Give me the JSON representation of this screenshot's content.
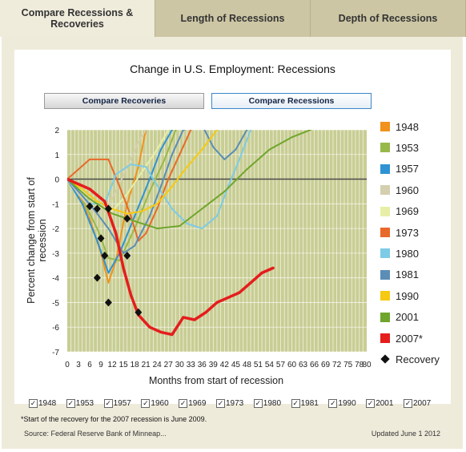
{
  "tabs": [
    "Compare Recessions & Recoveries",
    "Length of Recessions",
    "Depth of Recessions"
  ],
  "title": "Change in U.S. Employment: Recessions",
  "buttons": {
    "recoveries": "Compare Recoveries",
    "recessions": "Compare Recessions"
  },
  "legend": [
    {
      "label": "1948",
      "color": "#f0921c"
    },
    {
      "label": "1953",
      "color": "#98b94a"
    },
    {
      "label": "1957",
      "color": "#2f93d3"
    },
    {
      "label": "1960",
      "color": "#d4cfae"
    },
    {
      "label": "1969",
      "color": "#e7efa7"
    },
    {
      "label": "1973",
      "color": "#e8692a"
    },
    {
      "label": "1980",
      "color": "#7dcbe6"
    },
    {
      "label": "1981",
      "color": "#5b8db7"
    },
    {
      "label": "1990",
      "color": "#f6c912"
    },
    {
      "label": "2001",
      "color": "#6fa52c"
    },
    {
      "label": "2007*",
      "color": "#e51d1d"
    },
    {
      "label": "Recovery",
      "color": "#111111"
    }
  ],
  "checkboxes": [
    "1948",
    "1953",
    "1957",
    "1960",
    "1969",
    "1973",
    "1980",
    "1981",
    "1990",
    "2001",
    "2007"
  ],
  "checkbox_mark": "✓",
  "footnote": "*Start of the recovery for the 2007 recession is June 2009.",
  "source": "Source: Federal Reserve Bank of Minneap...",
  "updated": "Updated June 1 2012",
  "chart_data": {
    "type": "line",
    "title": "Change in U.S. Employment: Recessions",
    "xlabel": "Months from start of recession",
    "ylabel": "Percent change from start of recession",
    "xlim": [
      0,
      80
    ],
    "ylim": [
      -7,
      2
    ],
    "xticks": [
      0,
      3,
      6,
      9,
      12,
      15,
      18,
      21,
      24,
      27,
      30,
      33,
      36,
      39,
      42,
      45,
      48,
      51,
      54,
      57,
      60,
      63,
      66,
      69,
      72,
      75,
      78,
      80
    ],
    "yticks": [
      2,
      1,
      0,
      -1,
      -2,
      -3,
      -4,
      -5,
      -6,
      -7
    ],
    "grid": true,
    "plot_background": "#c8cd93",
    "series": [
      {
        "name": "1948",
        "color": "#f0921c",
        "width": 2,
        "points": [
          [
            0,
            0
          ],
          [
            3,
            -0.6
          ],
          [
            6,
            -1.6
          ],
          [
            9,
            -3
          ],
          [
            11,
            -4.2
          ],
          [
            13,
            -3.3
          ],
          [
            16,
            -1
          ],
          [
            19,
            0.5
          ],
          [
            21,
            2
          ]
        ]
      },
      {
        "name": "1953",
        "color": "#98b94a",
        "width": 2,
        "points": [
          [
            0,
            0
          ],
          [
            4,
            -0.8
          ],
          [
            8,
            -2
          ],
          [
            11,
            -3.2
          ],
          [
            14,
            -3.3
          ],
          [
            18,
            -2
          ],
          [
            22,
            -0.5
          ],
          [
            26,
            0.8
          ],
          [
            29,
            2
          ]
        ]
      },
      {
        "name": "1957",
        "color": "#2f93d3",
        "width": 2,
        "points": [
          [
            0,
            0
          ],
          [
            4,
            -1
          ],
          [
            8,
            -2.5
          ],
          [
            11,
            -3.8
          ],
          [
            14,
            -3
          ],
          [
            18,
            -1.5
          ],
          [
            22,
            0
          ],
          [
            25,
            1.2
          ],
          [
            28,
            2
          ]
        ]
      },
      {
        "name": "1960",
        "color": "#d4cfae",
        "width": 2,
        "points": [
          [
            0,
            0
          ],
          [
            3,
            -0.6
          ],
          [
            7,
            -1.3
          ],
          [
            10,
            -1.3
          ],
          [
            13,
            -0.5
          ],
          [
            16,
            0.5
          ],
          [
            19,
            1.5
          ],
          [
            21,
            2
          ]
        ]
      },
      {
        "name": "1969",
        "color": "#e7efa7",
        "width": 2,
        "points": [
          [
            0,
            0
          ],
          [
            4,
            -0.5
          ],
          [
            8,
            -1.1
          ],
          [
            12,
            -1.3
          ],
          [
            16,
            -0.6
          ],
          [
            20,
            0.3
          ],
          [
            24,
            1.2
          ],
          [
            27,
            2
          ]
        ]
      },
      {
        "name": "1973",
        "color": "#e8692a",
        "width": 2,
        "points": [
          [
            0,
            0
          ],
          [
            3,
            0.4
          ],
          [
            6,
            0.8
          ],
          [
            11,
            0.8
          ],
          [
            14,
            -0.3
          ],
          [
            17,
            -1.5
          ],
          [
            19,
            -2.5
          ],
          [
            21,
            -2.2
          ],
          [
            24,
            -1.2
          ],
          [
            27,
            0
          ],
          [
            30,
            1
          ],
          [
            33,
            2
          ]
        ]
      },
      {
        "name": "1980",
        "color": "#7dcbe6",
        "width": 2,
        "points": [
          [
            0,
            0
          ],
          [
            3,
            -0.5
          ],
          [
            6,
            -1
          ],
          [
            10,
            -1
          ],
          [
            13,
            0.2
          ],
          [
            17,
            0.6
          ],
          [
            21,
            0.5
          ],
          [
            25,
            -0.5
          ],
          [
            28,
            -1.2
          ],
          [
            32,
            -1.8
          ],
          [
            36,
            -2
          ],
          [
            40,
            -1.5
          ],
          [
            43,
            -0.3
          ],
          [
            46,
            0.8
          ],
          [
            49,
            2
          ]
        ]
      },
      {
        "name": "1981",
        "color": "#5b8db7",
        "width": 2,
        "points": [
          [
            0,
            0
          ],
          [
            3,
            -0.5
          ],
          [
            7,
            -1.2
          ],
          [
            11,
            -2
          ],
          [
            15,
            -3
          ],
          [
            18,
            -2.7
          ],
          [
            22,
            -1.5
          ],
          [
            25,
            -0.3
          ],
          [
            28,
            1
          ],
          [
            31,
            2
          ],
          [
            36,
            2.2
          ],
          [
            39,
            1.3
          ],
          [
            42,
            0.8
          ],
          [
            45,
            1.2
          ],
          [
            48,
            2
          ]
        ]
      },
      {
        "name": "1990",
        "color": "#f6c912",
        "width": 2,
        "points": [
          [
            0,
            0
          ],
          [
            4,
            -0.4
          ],
          [
            8,
            -0.9
          ],
          [
            12,
            -1.2
          ],
          [
            16,
            -1.4
          ],
          [
            20,
            -1.3
          ],
          [
            24,
            -1
          ],
          [
            28,
            -0.3
          ],
          [
            32,
            0.5
          ],
          [
            36,
            1.2
          ],
          [
            40,
            2
          ]
        ]
      },
      {
        "name": "2001",
        "color": "#6fa52c",
        "width": 2,
        "points": [
          [
            0,
            0
          ],
          [
            6,
            -0.8
          ],
          [
            12,
            -1.4
          ],
          [
            18,
            -1.7
          ],
          [
            24,
            -2
          ],
          [
            30,
            -1.9
          ],
          [
            36,
            -1.2
          ],
          [
            42,
            -0.5
          ],
          [
            48,
            0.4
          ],
          [
            54,
            1.2
          ],
          [
            60,
            1.7
          ],
          [
            65,
            2
          ]
        ]
      },
      {
        "name": "2007*",
        "color": "#e51d1d",
        "width": 3.5,
        "points": [
          [
            0,
            0
          ],
          [
            6,
            -0.4
          ],
          [
            10,
            -0.9
          ],
          [
            13,
            -2.2
          ],
          [
            15,
            -3.6
          ],
          [
            17,
            -4.7
          ],
          [
            19,
            -5.5
          ],
          [
            22,
            -6
          ],
          [
            25,
            -6.2
          ],
          [
            28,
            -6.3
          ],
          [
            31,
            -5.6
          ],
          [
            34,
            -5.7
          ],
          [
            37,
            -5.4
          ],
          [
            40,
            -5.0
          ],
          [
            43,
            -4.8
          ],
          [
            46,
            -4.6
          ],
          [
            49,
            -4.2
          ],
          [
            52,
            -3.8
          ],
          [
            55,
            -3.6
          ]
        ]
      }
    ],
    "recovery_points": [
      [
        6,
        -1.1
      ],
      [
        8,
        -1.2
      ],
      [
        8,
        -4.0
      ],
      [
        9,
        -2.4
      ],
      [
        10,
        -3.1
      ],
      [
        11,
        -1.2
      ],
      [
        11,
        -5.0
      ],
      [
        16,
        -1.6
      ],
      [
        16,
        -3.1
      ],
      [
        19,
        -5.4
      ]
    ]
  }
}
